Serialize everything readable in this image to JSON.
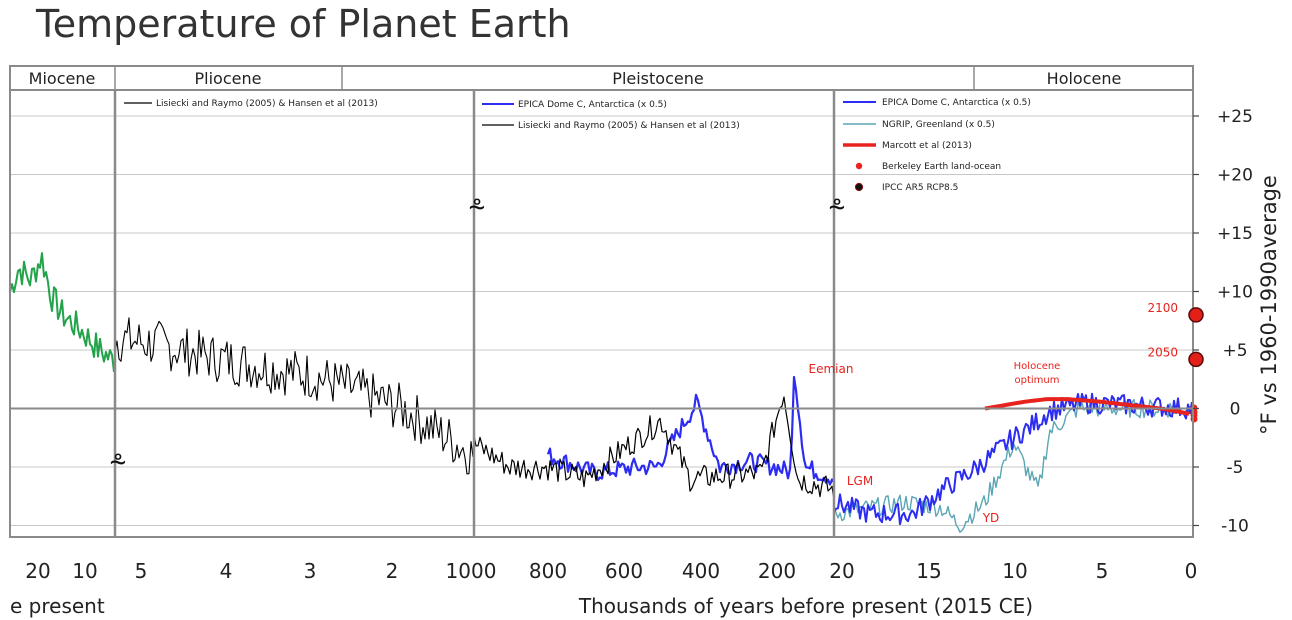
{
  "title": "Temperature of Planet Earth",
  "colors": {
    "lisiecki": "#000000",
    "epica": "#2c2cf2",
    "ngrip": "#5aa6b4",
    "marcott": "#e8231e",
    "miocene": "#22a34a",
    "ipcc": "#e32018",
    "annotation": "#e8231e",
    "grid": "#c8c8c8"
  },
  "chart_data": {
    "type": "line",
    "panels": [
      {
        "x_ticks": [
          "20",
          "10"
        ],
        "x_label": "e present"
      },
      {
        "x_ticks": [
          "5",
          "4",
          "3",
          "2"
        ]
      },
      {
        "x_ticks": [
          "1000",
          "800",
          "600",
          "400",
          "200"
        ]
      },
      {
        "x_ticks": [
          "20",
          "15",
          "10",
          "5",
          "0"
        ]
      }
    ],
    "xlabel": "Thousands of years before present (2015 CE)",
    "ylabel": "°F vs 1960-1990average",
    "y_ticks": [
      "+25",
      "+20",
      "+15",
      "+10",
      "+5",
      "0",
      "-5",
      "-10"
    ],
    "y_tick_values": [
      25,
      20,
      15,
      10,
      5,
      0,
      -5,
      -10
    ],
    "ylim": [
      -11,
      25.5
    ],
    "epochs": [
      "Miocene",
      "Pliocene",
      "Pleistocene",
      "Holocene"
    ],
    "legends": [
      [
        "Lisiecki and Raymo (2005) & Hansen et al (2013)"
      ],
      [
        "EPICA Dome C, Antarctica  (x 0.5)",
        "Lisiecki and Raymo (2005) & Hansen et al (2013)"
      ],
      [
        "EPICA Dome C, Antarctica  (x 0.5)",
        "NGRIP, Greenland (x 0.5)",
        "Marcott et al (2013)",
        "Berkeley Earth land-ocean",
        "IPCC AR5 RCP8.5"
      ]
    ],
    "annotations": [
      "Eemian",
      "LGM",
      "YD",
      "Holocene",
      "optimum",
      "2100",
      "2050"
    ],
    "projections": [
      {
        "label": "2100",
        "value": 8
      },
      {
        "label": "2050",
        "value": 4.2
      }
    ],
    "series": [
      {
        "name": "Miocene",
        "points": [
          [
            0,
            10
          ],
          [
            0.08,
            12
          ],
          [
            0.2,
            11
          ],
          [
            0.3,
            13
          ],
          [
            0.4,
            9.5
          ],
          [
            0.5,
            8
          ],
          [
            0.7,
            6.5
          ],
          [
            0.85,
            5
          ],
          [
            1,
            4
          ]
        ]
      },
      {
        "name": "Lisiecki and Raymo (2005) & Hansen et al (2013)",
        "points": [
          [
            0,
            6
          ],
          [
            0.12,
            5.5
          ],
          [
            0.25,
            4.5
          ],
          [
            0.4,
            3.6
          ],
          [
            0.55,
            2.8
          ],
          [
            0.65,
            1.8
          ],
          [
            0.8,
            0
          ],
          [
            0.9,
            -2
          ],
          [
            1,
            -4
          ]
        ]
      },
      {
        "name": "EPICA Dome C, Antarctica  (x 0.5)",
        "points": [
          [
            0,
            -4
          ],
          [
            0.16,
            -5.5
          ],
          [
            0.31,
            -5
          ],
          [
            0.38,
            -5
          ],
          [
            0.52,
            0.5
          ],
          [
            0.6,
            -5
          ],
          [
            0.7,
            -4.5
          ],
          [
            0.8,
            -5
          ],
          [
            0.85,
            -5.5
          ],
          [
            0.86,
            3.5
          ],
          [
            0.9,
            -5
          ],
          [
            1,
            -6
          ]
        ]
      },
      {
        "name": "Lisiecki and Raymo (2005) & Hansen et al (2013) (Pleistocene)",
        "points": [
          [
            0,
            -3
          ],
          [
            0.1,
            -5
          ],
          [
            0.2,
            -5
          ],
          [
            0.31,
            -6
          ],
          [
            0.35,
            -5
          ],
          [
            0.52,
            -1
          ],
          [
            0.6,
            -6
          ],
          [
            0.8,
            -5.5
          ],
          [
            0.86,
            1.5
          ],
          [
            0.9,
            -6
          ],
          [
            1,
            -7
          ]
        ]
      },
      {
        "name": "EPICA Dome C, Antarctica  (x 0.5) (late)",
        "points": [
          [
            0,
            -8
          ],
          [
            0.1,
            -9
          ],
          [
            0.22,
            -9
          ],
          [
            0.3,
            -7
          ],
          [
            0.4,
            -5
          ],
          [
            0.5,
            -2.5
          ],
          [
            0.55,
            -1.5
          ],
          [
            0.6,
            -0.2
          ],
          [
            0.7,
            0.5
          ],
          [
            1,
            0
          ]
        ]
      },
      {
        "name": "NGRIP, Greenland (x 0.5)",
        "points": [
          [
            0,
            -9
          ],
          [
            0.2,
            -8
          ],
          [
            0.3,
            -8.5
          ],
          [
            0.35,
            -10
          ],
          [
            0.42,
            -8
          ],
          [
            0.5,
            -3
          ],
          [
            0.55,
            -6
          ],
          [
            0.57,
            -7
          ],
          [
            0.6,
            -2
          ],
          [
            0.68,
            0
          ],
          [
            1,
            0
          ]
        ]
      },
      {
        "name": "Marcott et al (2013)",
        "points": [
          [
            0,
            0
          ],
          [
            0.1,
            0.3
          ],
          [
            0.2,
            0.6
          ],
          [
            0.3,
            0.8
          ],
          [
            0.4,
            0.8
          ],
          [
            0.55,
            0.6
          ],
          [
            0.7,
            0.3
          ],
          [
            0.85,
            0
          ],
          [
            0.95,
            -0.3
          ],
          [
            1,
            -0.5
          ]
        ]
      }
    ]
  }
}
